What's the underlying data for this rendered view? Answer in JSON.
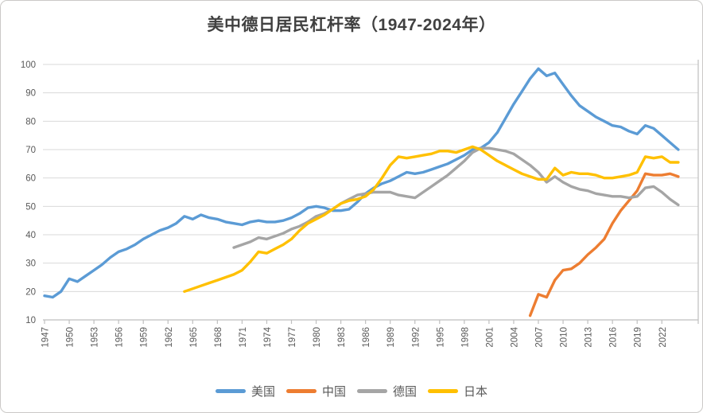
{
  "window": {
    "title": "美中德日居民杠杆率（1947-2024年）"
  },
  "chart_data": {
    "type": "line",
    "title": "美中德日居民杠杆率（1947-2024年）",
    "xlabel": "",
    "ylabel": "",
    "xlim": [
      1947,
      2024
    ],
    "ylim": [
      10,
      100
    ],
    "grid": true,
    "legend_position": "bottom",
    "x_tick_labels": [
      "1947",
      "1950",
      "1953",
      "1956",
      "1959",
      "1962",
      "1965",
      "1968",
      "1971",
      "1974",
      "1977",
      "1980",
      "1983",
      "1986",
      "1989",
      "1992",
      "1995",
      "1998",
      "2001",
      "2004",
      "2007",
      "2010",
      "2013",
      "2016",
      "2019",
      "2022"
    ],
    "y_ticks": [
      10,
      20,
      30,
      40,
      50,
      60,
      70,
      80,
      90,
      100
    ],
    "axis_color": "#bfbfbf",
    "gridline_color": "#d9d9d9",
    "tick_label_color": "#595959",
    "series": [
      {
        "id": "us",
        "name": "美国",
        "color": "#5b9bd5",
        "start_year": 1947,
        "values": [
          18.5,
          18,
          20,
          24.5,
          23.5,
          25.5,
          27.5,
          29.5,
          32,
          34,
          35,
          36.5,
          38.5,
          40,
          41.5,
          42.5,
          44,
          46.5,
          45.5,
          47,
          46,
          45.5,
          44.5,
          44,
          43.5,
          44.5,
          45,
          44.5,
          44.5,
          45,
          46,
          47.5,
          49.5,
          50,
          49.5,
          48.5,
          48.5,
          49,
          51.5,
          54.5,
          56.5,
          58,
          59,
          60.5,
          62,
          61.5,
          62,
          63,
          64,
          65,
          66.5,
          68,
          70,
          70.5,
          72.5,
          76,
          81,
          86,
          90.5,
          95,
          98.5,
          96,
          97,
          93,
          89,
          85.5,
          83.5,
          81.5,
          80,
          78.5,
          78,
          76.5,
          75.5,
          78.5,
          77.5,
          75,
          72.5,
          70
        ]
      },
      {
        "id": "china",
        "name": "中国",
        "color": "#ed7d31",
        "start_year": 2006,
        "values": [
          11.5,
          19,
          18,
          24,
          27.5,
          28,
          30,
          33,
          35.5,
          38.5,
          44,
          48.5,
          52,
          55.5,
          61.5,
          61,
          61,
          61.5,
          60.5
        ]
      },
      {
        "id": "germany",
        "name": "德国",
        "color": "#a5a5a5",
        "start_year": 1970,
        "values": [
          35.5,
          36.5,
          37.5,
          39,
          38.5,
          39.5,
          40.5,
          42,
          43,
          44.5,
          46.5,
          47.5,
          49,
          51,
          52.5,
          54,
          54.5,
          55,
          55,
          55,
          54,
          53.5,
          53,
          55,
          57,
          59,
          61,
          63.5,
          66,
          69,
          70.5,
          70.5,
          70,
          69.5,
          68.5,
          66.5,
          64.5,
          62,
          58.5,
          60.5,
          58.5,
          57,
          56,
          55.5,
          54.5,
          54,
          53.5,
          53.5,
          53,
          53.5,
          56.5,
          57,
          55,
          52.5,
          50.5
        ]
      },
      {
        "id": "japan",
        "name": "日本",
        "color": "#ffc000",
        "start_year": 1964,
        "values": [
          20,
          21,
          22,
          23,
          24,
          25,
          26,
          27.5,
          30.5,
          34,
          33.5,
          35,
          36.5,
          38.5,
          41.5,
          44,
          45.5,
          47,
          49,
          51,
          52,
          52.5,
          53.5,
          56,
          60,
          64.5,
          67.5,
          67,
          67.5,
          68,
          68.5,
          69.5,
          69.5,
          69,
          70,
          71,
          70,
          68,
          66,
          64.5,
          63,
          61.5,
          60.5,
          59.5,
          59.5,
          63.5,
          61,
          62,
          61.5,
          61.5,
          61,
          60,
          60,
          60.5,
          61,
          62,
          67.5,
          67,
          67.5,
          65.5,
          65.5
        ]
      }
    ]
  }
}
